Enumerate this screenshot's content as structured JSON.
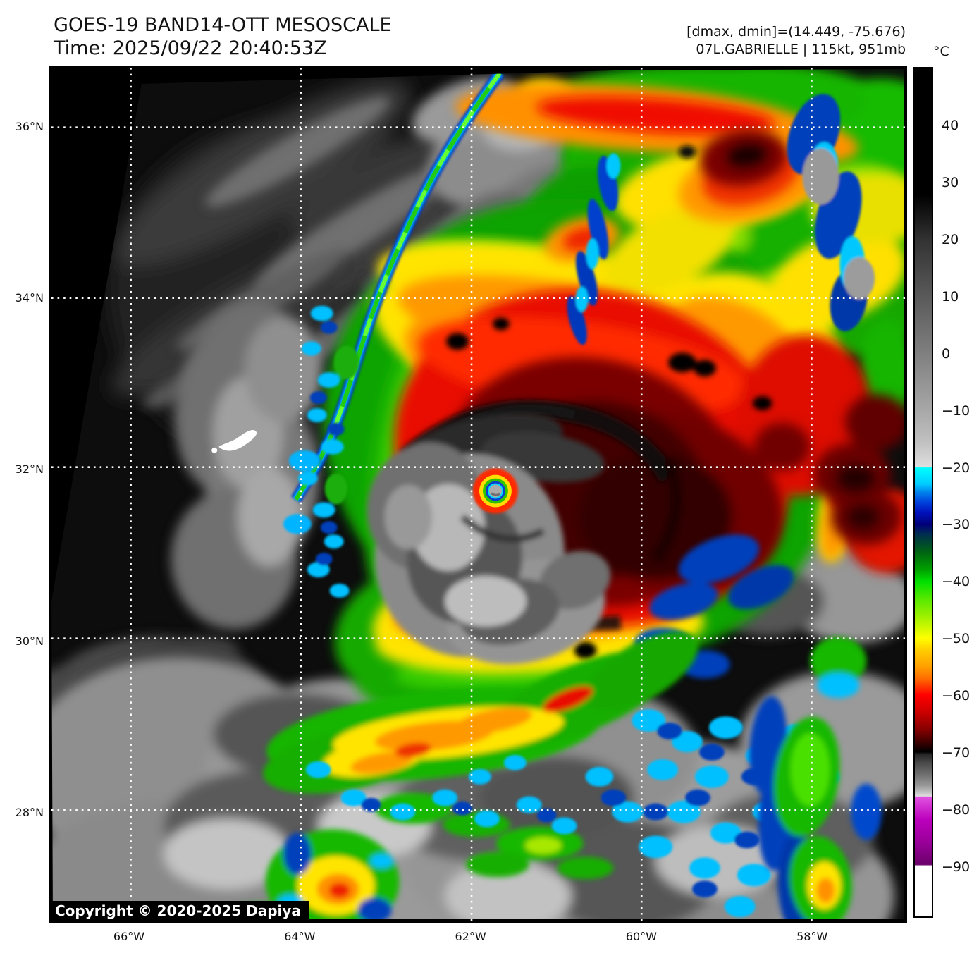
{
  "header": {
    "title": "GOES-19 BAND14-OTT MESOSCALE",
    "time_line": "Time: 2025/09/22 20:40:53Z",
    "dmax_dmin": "[dmax, dmin]=(14.449, -75.676)",
    "storm_info": "07L.GABRIELLE | 115kt, 951mb"
  },
  "colorbar": {
    "unit": "°C",
    "ticks": [
      {
        "label": "40",
        "value": 40
      },
      {
        "label": "30",
        "value": 30
      },
      {
        "label": "20",
        "value": 20
      },
      {
        "label": "10",
        "value": 10
      },
      {
        "label": "0",
        "value": 0
      },
      {
        "label": "−10",
        "value": -10
      },
      {
        "label": "−20",
        "value": -20
      },
      {
        "label": "−30",
        "value": -30
      },
      {
        "label": "−40",
        "value": -40
      },
      {
        "label": "−50",
        "value": -50
      },
      {
        "label": "−60",
        "value": -60
      },
      {
        "label": "−70",
        "value": -70
      },
      {
        "label": "−80",
        "value": -80
      },
      {
        "label": "−90",
        "value": -90
      }
    ]
  },
  "axes": {
    "lat": [
      {
        "label": "36°N",
        "deg": 36
      },
      {
        "label": "34°N",
        "deg": 34
      },
      {
        "label": "32°N",
        "deg": 32
      },
      {
        "label": "30°N",
        "deg": 30
      },
      {
        "label": "28°N",
        "deg": 28
      }
    ],
    "lon": [
      {
        "label": "66°W",
        "deg": 66
      },
      {
        "label": "64°W",
        "deg": 64
      },
      {
        "label": "62°W",
        "deg": 62
      },
      {
        "label": "60°W",
        "deg": 60
      },
      {
        "label": "58°W",
        "deg": 58
      }
    ]
  },
  "copyright_text": "Copyright © 2020-2025 Dapiya",
  "scene": {
    "satellite": "GOES-19",
    "band": "BAND14-OTT",
    "sector": "MESOSCALE",
    "storm": "07L.GABRIELLE",
    "intensity": "115kt",
    "pressure": "951mb",
    "dmax": "14.449",
    "dmin": "-75.676",
    "overlays": [
      "lat-lon dotted grid",
      "Bermuda outline (white)",
      "IR temperature color scale"
    ]
  }
}
